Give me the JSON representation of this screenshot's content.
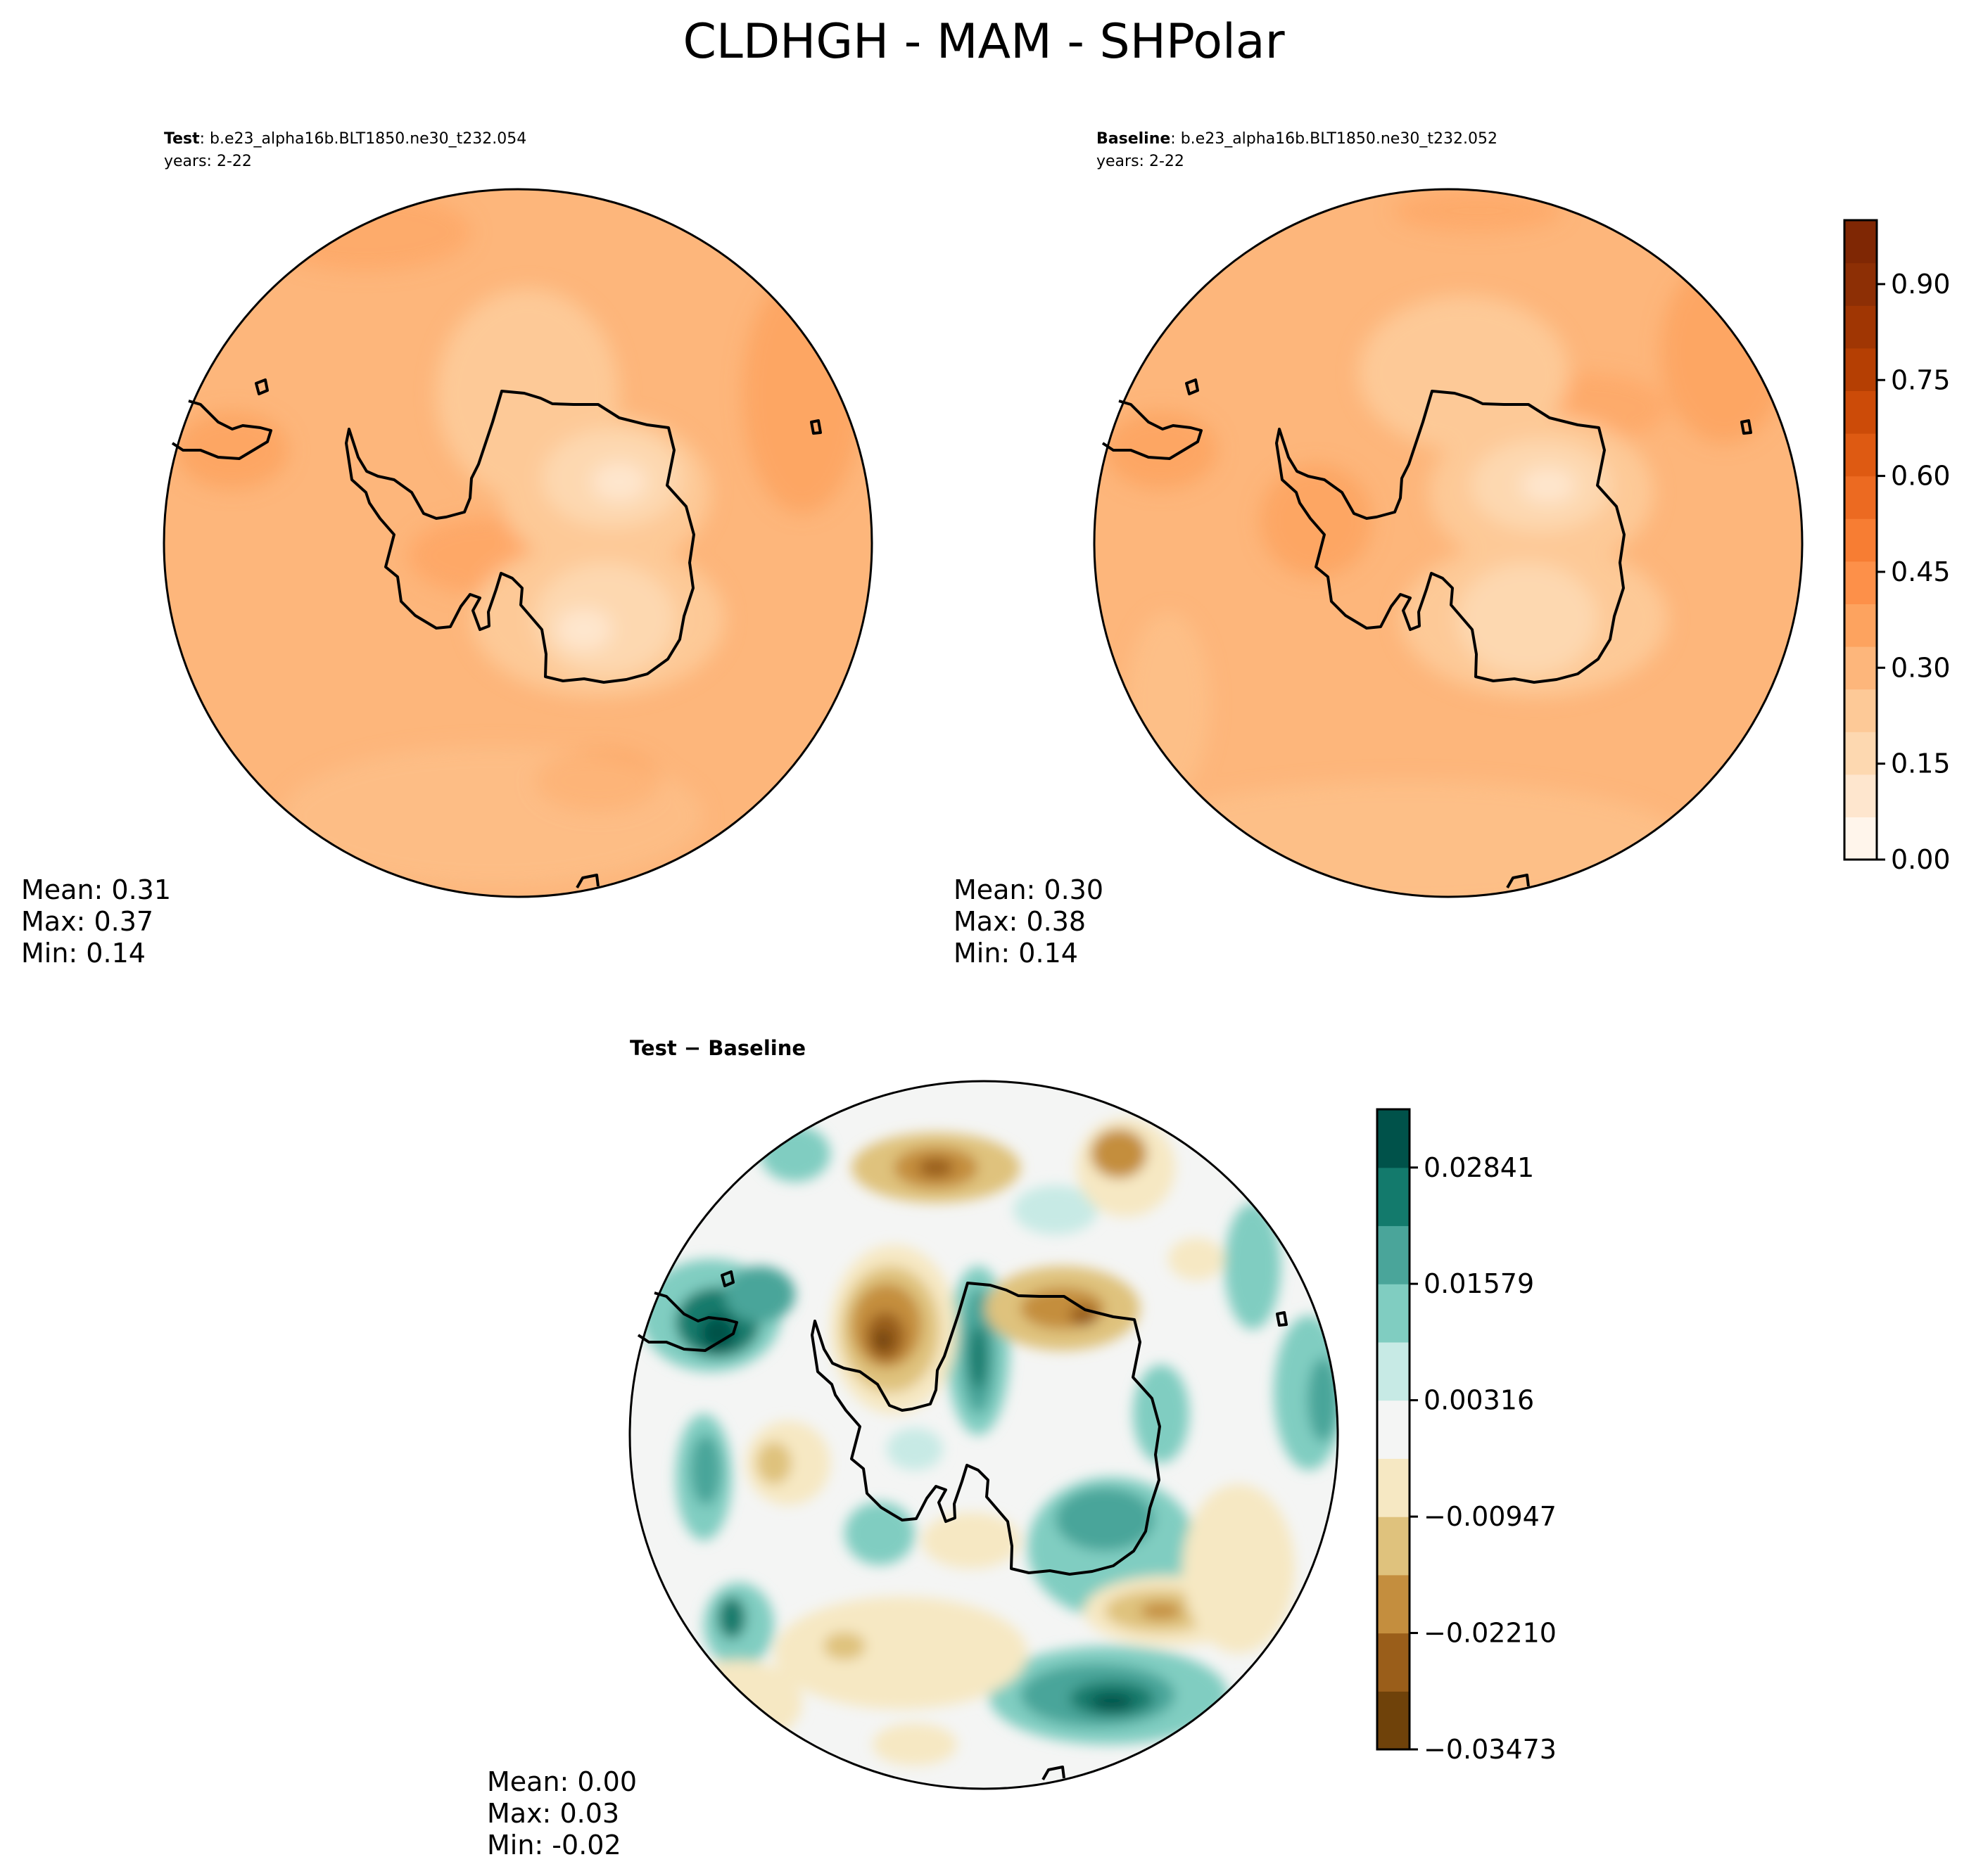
{
  "title": "CLDHGH - MAM - SHPolar",
  "panels": [
    {
      "id": "test",
      "label_bold": "Test",
      "label_case": ": b.e23_alpha16b.BLT1850.ne30_t232.054",
      "years": "years: 2-22",
      "stats": [
        "Mean:  0.31",
        "Max:  0.37",
        "Min:  0.14"
      ]
    },
    {
      "id": "baseline",
      "label_bold": "Baseline",
      "label_case": ": b.e23_alpha16b.BLT1850.ne30_t232.052",
      "years": "years: 2-22",
      "stats": [
        "Mean:  0.30",
        "Max:  0.38",
        "Min:  0.14"
      ]
    },
    {
      "id": "diff",
      "label_bold": "Test − Baseline",
      "stats": [
        "Mean:  0.00",
        "Max:  0.03",
        "Min: -0.02"
      ]
    }
  ],
  "colorbars": {
    "main": {
      "ticks": [
        "0.00",
        "0.15",
        "0.30",
        "0.45",
        "0.60",
        "0.75",
        "0.90"
      ],
      "range": [
        0,
        1.0
      ],
      "colors": [
        "#fff5eb",
        "#fee6ce",
        "#fdd8b0",
        "#fdc997",
        "#fdb67b",
        "#fda35f",
        "#fd9049",
        "#f77d33",
        "#ec6a21",
        "#de5a12",
        "#cc4b08",
        "#b53f03",
        "#a03603",
        "#8d2f05",
        "#7f2704"
      ]
    },
    "diff": {
      "ticks": [
        "0.02841",
        "0.01579",
        "0.00316",
        "−0.00947",
        "−0.02210",
        "−0.03473"
      ],
      "range": [
        -0.03473,
        0.03473
      ],
      "colors": [
        "#6f420a",
        "#9a5e1a",
        "#c48e3e",
        "#dfc27d",
        "#f6e8c3",
        "#f4f5f4",
        "#c7eae5",
        "#80cdc1",
        "#4aa59a",
        "#137a6c",
        "#00524a"
      ]
    }
  },
  "chart_data": {
    "type": "heatmap",
    "title": "CLDHGH - MAM - SHPolar",
    "variable": "CLDHGH",
    "season": "MAM",
    "region": "SHPolar",
    "projection": "south polar stereographic",
    "panels": [
      {
        "name": "Test",
        "case": "b.e23_alpha16b.BLT1850.ne30_t232.054",
        "years": "2-22",
        "mean": 0.31,
        "max": 0.37,
        "min": 0.14,
        "levels": [
          0.0,
          0.9
        ],
        "cmap": "Oranges"
      },
      {
        "name": "Baseline",
        "case": "b.e23_alpha16b.BLT1850.ne30_t232.052",
        "years": "2-22",
        "mean": 0.3,
        "max": 0.38,
        "min": 0.14,
        "levels": [
          0.0,
          0.9
        ],
        "cmap": "Oranges"
      },
      {
        "name": "Test − Baseline",
        "mean": 0.0,
        "max": 0.03,
        "min": -0.02,
        "levels": [
          -0.03473,
          0.02841
        ],
        "cmap": "BrBG"
      }
    ]
  }
}
